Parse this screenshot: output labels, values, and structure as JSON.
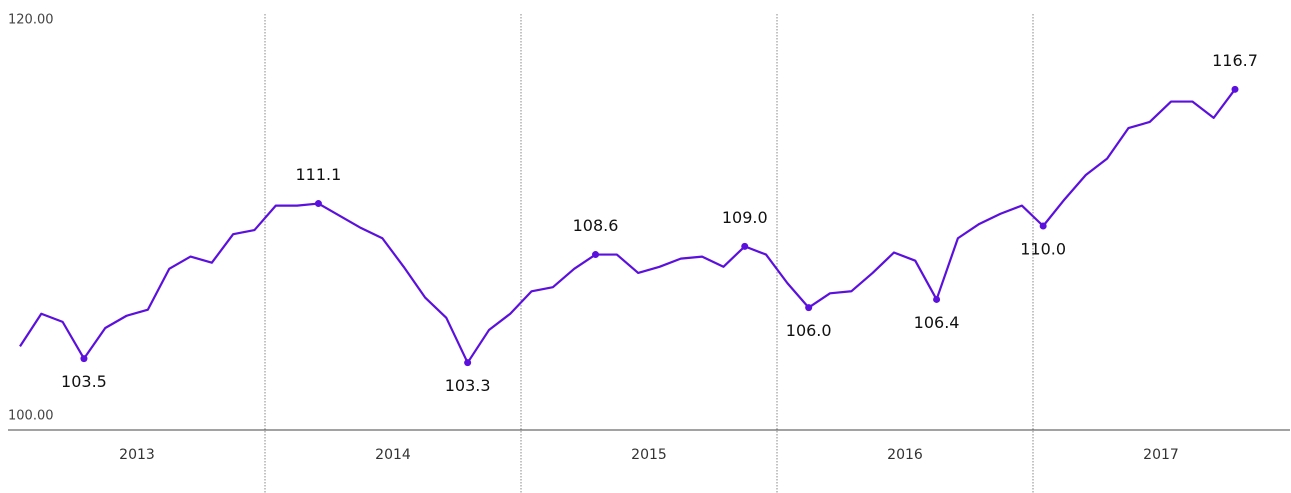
{
  "chart_data": {
    "type": "line",
    "years": [
      "2013",
      "2014",
      "2015",
      "2016",
      "2017"
    ],
    "values": [
      104.1,
      105.7,
      105.3,
      103.5,
      105.0,
      105.6,
      105.9,
      107.9,
      108.5,
      108.2,
      109.6,
      109.8,
      111.0,
      111.0,
      111.1,
      110.5,
      109.9,
      109.4,
      108.0,
      106.5,
      105.5,
      103.3,
      104.9,
      105.7,
      106.8,
      107.0,
      107.9,
      108.6,
      108.6,
      107.7,
      108.0,
      108.4,
      108.5,
      108.0,
      109.0,
      108.6,
      107.2,
      106.0,
      106.7,
      106.8,
      107.7,
      108.7,
      108.3,
      106.4,
      109.4,
      110.1,
      110.6,
      111.0,
      110.0,
      111.3,
      112.5,
      113.3,
      114.8,
      115.1,
      116.1,
      116.1,
      115.3,
      116.7
    ],
    "value_labels": [
      null,
      null,
      null,
      "103.5",
      null,
      null,
      null,
      null,
      null,
      null,
      null,
      null,
      null,
      null,
      "111.1",
      null,
      null,
      null,
      null,
      null,
      null,
      "103.3",
      null,
      null,
      null,
      null,
      null,
      "108.6",
      null,
      null,
      null,
      null,
      null,
      null,
      "109.0",
      null,
      null,
      "106.0",
      null,
      null,
      null,
      null,
      null,
      "106.4",
      null,
      null,
      null,
      null,
      "110.0",
      null,
      null,
      null,
      null,
      null,
      null,
      null,
      null,
      "116.7"
    ],
    "color": "#5b10dd",
    "ylim": [
      100,
      120
    ],
    "yticks": [
      {
        "value": 120,
        "label": "120.00"
      },
      {
        "value": 100,
        "label": "100.00"
      }
    ]
  }
}
